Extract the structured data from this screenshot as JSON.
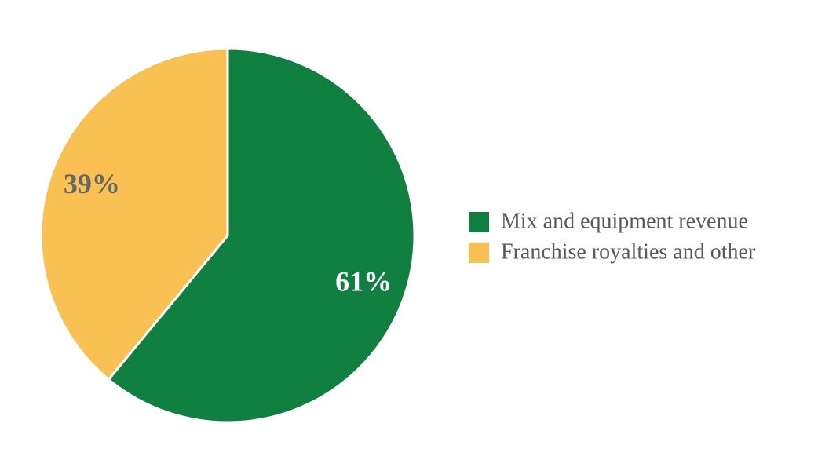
{
  "chart_data": {
    "type": "pie",
    "categories": [
      "Mix and equipment revenue",
      "Franchise royalties and other"
    ],
    "values": [
      61,
      39
    ],
    "value_labels": [
      "61%",
      "39%"
    ],
    "colors": [
      "#108040",
      "#F9C152"
    ],
    "legend": "right"
  }
}
